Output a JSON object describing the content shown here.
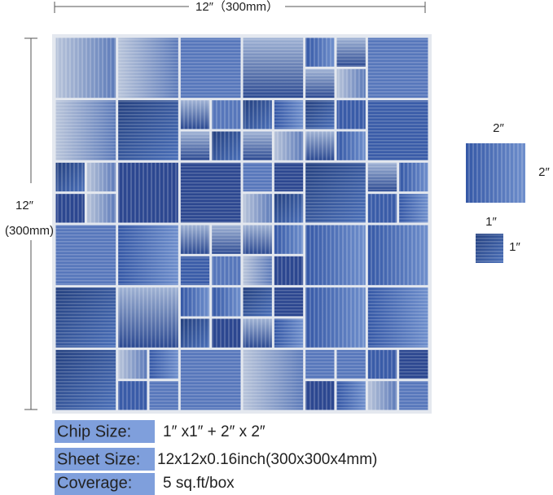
{
  "dimensions": {
    "width_label": "12″（300mm）",
    "height_label": "12″",
    "height_mm_label": "(300mm)"
  },
  "chips": {
    "large_top": "2″",
    "large_side": "2″",
    "small_top": "1″",
    "small_side": "1″"
  },
  "specs": [
    {
      "label": "Chip Size:",
      "value": "1″ x1″ + 2″ x 2″"
    },
    {
      "label": "Sheet Size:",
      "value": "12x12x0.16inch(300x300x4mm)"
    },
    {
      "label": "Coverage:",
      "value": "5 sq.ft/box"
    }
  ]
}
